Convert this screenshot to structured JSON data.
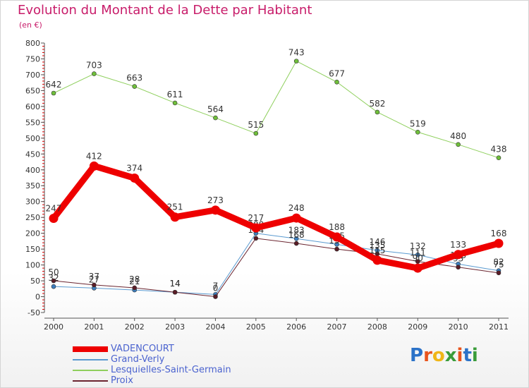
{
  "title": "Evolution du Montant de la Dette par Habitant",
  "subtitle": "(en €)",
  "logo": {
    "text": "Proxiti",
    "colors": [
      "#2b72c8",
      "#e8541d",
      "#f0b618",
      "#3a9c3a",
      "#e8541d",
      "#2b72c8",
      "#3a9c3a"
    ]
  },
  "chart_data": {
    "type": "line",
    "x": [
      "2000",
      "2001",
      "2002",
      "2003",
      "2004",
      "2005",
      "2006",
      "2007",
      "2008",
      "2009",
      "2010",
      "2011"
    ],
    "ylim": [
      -50,
      800
    ],
    "yticks": [
      -50,
      0,
      50,
      100,
      150,
      200,
      250,
      300,
      350,
      400,
      450,
      500,
      550,
      600,
      650,
      700,
      750,
      800
    ],
    "grid": false,
    "legend_position": "bottom-left",
    "series": [
      {
        "name": "Lesquielles-Saint-Germain",
        "color": "#8ecf5c",
        "marker": "#6fbf3a",
        "width": 1,
        "values": [
          642,
          703,
          663,
          611,
          564,
          515,
          743,
          677,
          582,
          519,
          480,
          438
        ],
        "labels": [
          "642",
          "703",
          "663",
          "611",
          "564",
          "515",
          "743",
          "677",
          "582",
          "519",
          "480",
          "438"
        ]
      },
      {
        "name": "Grand-Verly",
        "color": "#5a9ad0",
        "marker": "#3d7fc0",
        "width": 1,
        "values": [
          32,
          27,
          21,
          14,
          7,
          200,
          183,
          165,
          146,
          132,
          103,
          82
        ],
        "labels": [
          "32",
          "27",
          "21",
          "14",
          "7",
          "200",
          "183",
          "165",
          "146",
          "132",
          "103",
          "82"
        ]
      },
      {
        "name": "Proix",
        "color": "#6b2530",
        "marker": "#5a1c26",
        "width": 1,
        "values": [
          50,
          37,
          28,
          14,
          0,
          184,
          168,
          150,
          135,
          111,
          93,
          75
        ],
        "labels": [
          "50",
          "37",
          "28",
          "14",
          "0",
          "184",
          "168",
          "150",
          "135",
          "111",
          "93",
          "75"
        ]
      },
      {
        "name": "VADENCOURT",
        "color": "#ee0000",
        "marker": "#ee0000",
        "width": 9,
        "values": [
          247,
          412,
          374,
          251,
          273,
          217,
          248,
          188,
          115,
          90,
          133,
          168
        ],
        "labels": [
          "247",
          "412",
          "374",
          "251",
          "273",
          "217",
          "248",
          "188",
          "115",
          "90",
          "133",
          "168"
        ]
      }
    ],
    "legend": [
      "VADENCOURT",
      "Grand-Verly",
      "Lesquielles-Saint-Germain",
      "Proix"
    ]
  }
}
